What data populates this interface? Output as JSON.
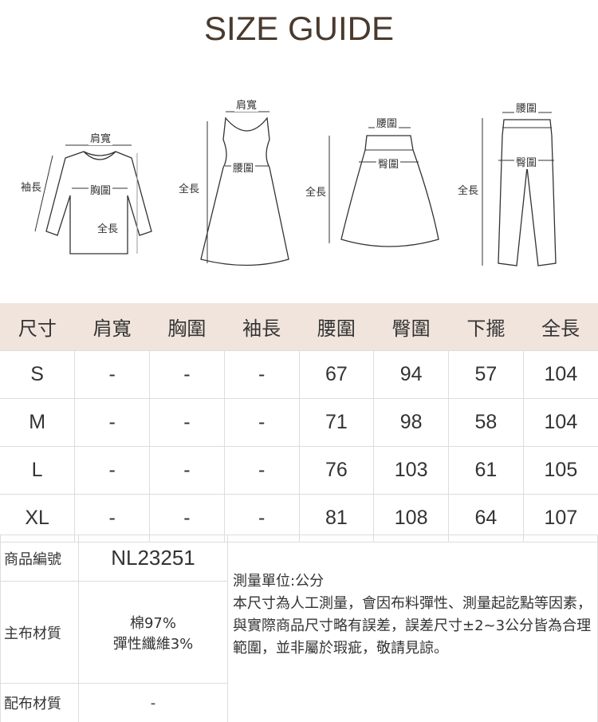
{
  "title": "SIZE GUIDE",
  "illustrations": {
    "top": {
      "shoulder": "肩寬",
      "sleeve": "袖長",
      "chest": "胸圍",
      "length": "全長"
    },
    "dress": {
      "shoulder": "肩寬",
      "length": "全長",
      "waist": "腰圍"
    },
    "skirt": {
      "waist": "腰圍",
      "hip": "臀圍",
      "length": "全長"
    },
    "pants": {
      "waist": "腰圍",
      "hip": "臀圍",
      "length": "全長"
    }
  },
  "size_table": {
    "headers": [
      "尺寸",
      "肩寬",
      "胸圍",
      "袖長",
      "腰圍",
      "臀圍",
      "下擺",
      "全長"
    ],
    "rows": [
      [
        "S",
        "-",
        "-",
        "-",
        "67",
        "94",
        "57",
        "104"
      ],
      [
        "M",
        "-",
        "-",
        "-",
        "71",
        "98",
        "58",
        "104"
      ],
      [
        "L",
        "-",
        "-",
        "-",
        "76",
        "103",
        "61",
        "105"
      ],
      [
        "XL",
        "-",
        "-",
        "-",
        "81",
        "108",
        "64",
        "107"
      ]
    ]
  },
  "info": {
    "product_no_label": "商品編號",
    "product_no": "NL23251",
    "main_fabric_label": "主布材質",
    "main_fabric_1": "棉97%",
    "main_fabric_2": "彈性纖維3%",
    "sub_fabric_label": "配布材質",
    "sub_fabric": "-",
    "unit_note": "測量單位:公分",
    "note": "本尺寸為人工測量，會因布料彈性、測量起訖點等因素，與實際商品尺寸略有誤差，誤差尺寸±2~3公分皆為合理範圍，並非屬於瑕疵，敬請見諒。"
  },
  "colors": {
    "header_bg": "#f0e4dc",
    "title": "#4a3a2e"
  }
}
